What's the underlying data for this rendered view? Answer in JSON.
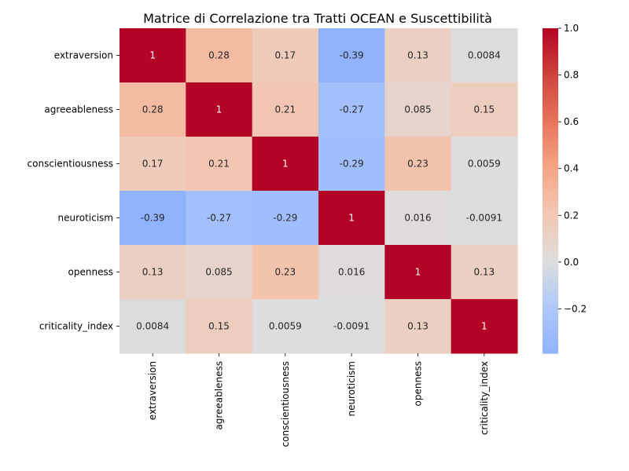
{
  "chart_data": {
    "type": "heatmap",
    "title": "Matrice di Correlazione tra Tratti OCEAN e Suscettibilità",
    "xlabel": "",
    "ylabel": "",
    "categories": [
      "extraversion",
      "agreeableness",
      "conscientiousness",
      "neuroticism",
      "openness",
      "criticality_index"
    ],
    "values": [
      [
        1,
        0.28,
        0.17,
        -0.39,
        0.13,
        0.0084
      ],
      [
        0.28,
        1,
        0.21,
        -0.27,
        0.085,
        0.15
      ],
      [
        0.17,
        0.21,
        1,
        -0.29,
        0.23,
        0.0059
      ],
      [
        -0.39,
        -0.27,
        -0.29,
        1,
        0.016,
        -0.0091
      ],
      [
        0.13,
        0.085,
        0.23,
        0.016,
        1,
        0.13
      ],
      [
        0.0084,
        0.15,
        0.0059,
        -0.0091,
        0.13,
        1
      ]
    ],
    "annotations": [
      [
        "1",
        "0.28",
        "0.17",
        "-0.39",
        "0.13",
        "0.0084"
      ],
      [
        "0.28",
        "1",
        "0.21",
        "-0.27",
        "0.085",
        "0.15"
      ],
      [
        "0.17",
        "0.21",
        "1",
        "-0.29",
        "0.23",
        "0.0059"
      ],
      [
        "-0.39",
        "-0.27",
        "-0.29",
        "1",
        "0.016",
        "-0.0091"
      ],
      [
        "0.13",
        "0.085",
        "0.23",
        "0.016",
        "1",
        "0.13"
      ],
      [
        "0.0084",
        "0.15",
        "0.0059",
        "-0.0091",
        "0.13",
        "1"
      ]
    ],
    "colormap": "coolwarm",
    "center": 0,
    "colorbar": {
      "range": [
        -0.39,
        1.0
      ],
      "ticks": [
        -0.2,
        0.0,
        0.2,
        0.4,
        0.6,
        0.8,
        1.0
      ],
      "tick_labels": [
        "−0.2",
        "0.0",
        "0.2",
        "0.4",
        "0.6",
        "0.8",
        "1.0"
      ]
    },
    "grid": false
  }
}
